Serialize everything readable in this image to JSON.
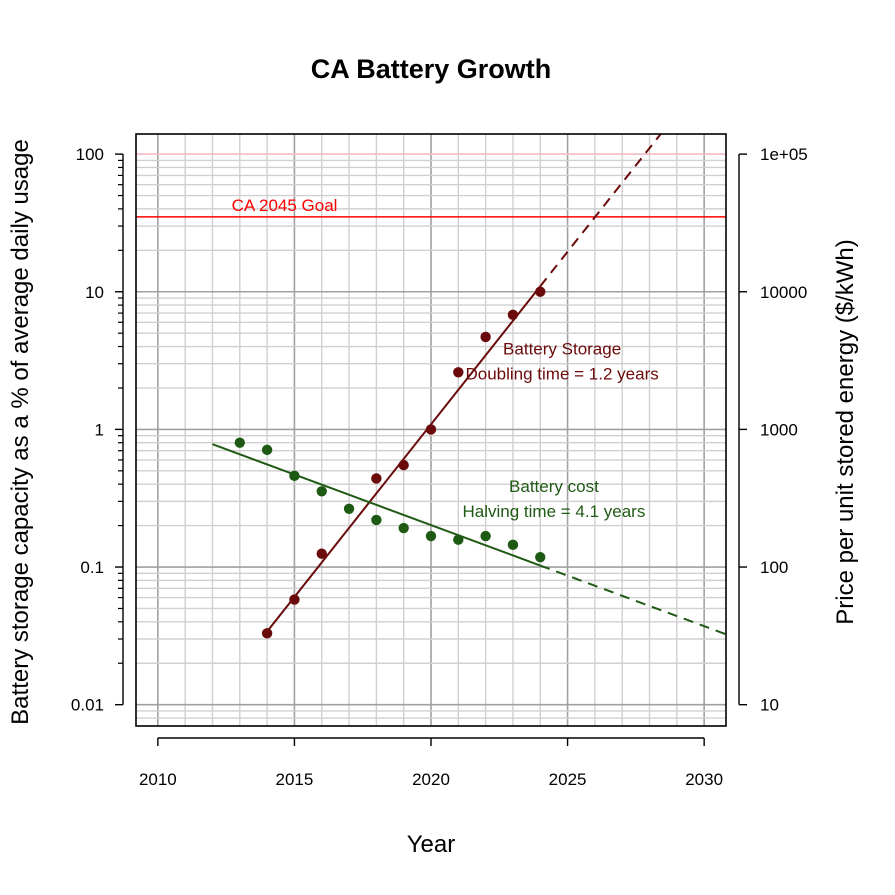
{
  "chart_data": {
    "type": "scatter",
    "title": "CA Battery Growth",
    "xlabel": "Year",
    "ylabel_left": "Battery storage capacity as a % of average daily usage",
    "ylabel_right": "Price per unit stored energy ($/kWh)",
    "xlim": [
      2009.2,
      2030.8
    ],
    "ylim_left": [
      0.007,
      140
    ],
    "ylim_right": [
      7,
      140000
    ],
    "log_y": true,
    "grid": true,
    "x_ticks": [
      2010,
      2015,
      2020,
      2025,
      2030
    ],
    "y_left_ticks": [
      {
        "value": 0.01,
        "label": "0.01"
      },
      {
        "value": 0.1,
        "label": "0.1"
      },
      {
        "value": 1,
        "label": "1"
      },
      {
        "value": 10,
        "label": "10"
      },
      {
        "value": 100,
        "label": "100"
      }
    ],
    "y_right_ticks": [
      {
        "value": 10,
        "label": "10"
      },
      {
        "value": 100,
        "label": "100"
      },
      {
        "value": 1000,
        "label": "1000"
      },
      {
        "value": 10000,
        "label": "10000"
      },
      {
        "value": 100000,
        "label": "1e+05"
      }
    ],
    "series": [
      {
        "name": "Battery Storage",
        "axis": "left",
        "color": "#6b0a0a",
        "x": [
          2014,
          2015,
          2016,
          2018,
          2019,
          2020,
          2021,
          2022,
          2023,
          2024
        ],
        "y": [
          0.033,
          0.058,
          0.125,
          0.44,
          0.55,
          1.0,
          2.6,
          4.7,
          6.8,
          10.0
        ],
        "fit": {
          "solid_from": 2014,
          "solid_to": 2024,
          "dashed_to": 2031,
          "y_at_2014": 0.034,
          "doubling_time": 1.2
        }
      },
      {
        "name": "Battery cost",
        "axis": "right",
        "color": "#1f5a14",
        "x": [
          2013,
          2014,
          2015,
          2016,
          2017,
          2018,
          2019,
          2020,
          2021,
          2022,
          2023,
          2024
        ],
        "y": [
          800,
          710,
          460,
          355,
          265,
          220,
          192,
          168,
          158,
          168,
          145,
          118
        ],
        "fit": {
          "solid_from": 2012,
          "solid_to": 2024,
          "dashed_to": 2030.8,
          "y_at_2012": 780,
          "halving_time": 4.1
        }
      }
    ],
    "hlines": [
      {
        "y": 100,
        "color": "#ffc0cb"
      },
      {
        "y": 35,
        "color": "#ff0000",
        "label": "CA 2045 Goal"
      }
    ],
    "annotations": [
      {
        "lines": [
          "Battery Storage",
          "Doubling time = 1.2 years"
        ],
        "color": "#6b0a0a",
        "x": 2024.8,
        "y": 3.5
      },
      {
        "lines": [
          "Battery cost",
          "Halving time = 4.1 years"
        ],
        "color": "#1f5a14",
        "x": 2024.5,
        "y": 0.35
      }
    ]
  }
}
